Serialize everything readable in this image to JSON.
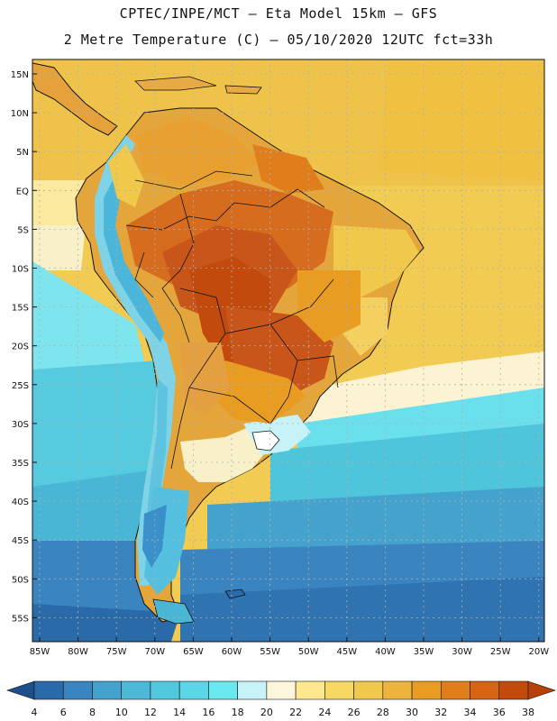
{
  "header": {
    "line1": "CPTEC/INPE/MCT –  Eta Model 15km – GFS",
    "line2": "2 Metre Temperature (C) – 05/10/2020 12UTC fct=33h"
  },
  "lat_labels": [
    "15N",
    "10N",
    "5N",
    "EQ",
    "5S",
    "10S",
    "15S",
    "20S",
    "25S",
    "30S",
    "35S",
    "40S",
    "45S",
    "50S",
    "55S"
  ],
  "lon_labels": [
    "85W",
    "80W",
    "75W",
    "70W",
    "65W",
    "60W",
    "55W",
    "50W",
    "45W",
    "40W",
    "35W",
    "30W",
    "25W",
    "20W"
  ],
  "colorbar": {
    "ticks": [
      "4",
      "6",
      "8",
      "10",
      "12",
      "14",
      "16",
      "18",
      "20",
      "22",
      "24",
      "26",
      "28",
      "30",
      "32",
      "34",
      "36",
      "38"
    ],
    "colors": [
      "#2b6aa8",
      "#3a84bf",
      "#45a2cc",
      "#4db8d8",
      "#52c8de",
      "#5ad6e6",
      "#6ae8f0",
      "#c6f2f8",
      "#fdf6dc",
      "#fde890",
      "#f6d862",
      "#f0c84c",
      "#ecb43c",
      "#e89c22",
      "#e07e1c",
      "#d66414",
      "#c24a0c"
    ],
    "under_color": "#1f4f8a",
    "over_color": "#b8400a"
  }
}
